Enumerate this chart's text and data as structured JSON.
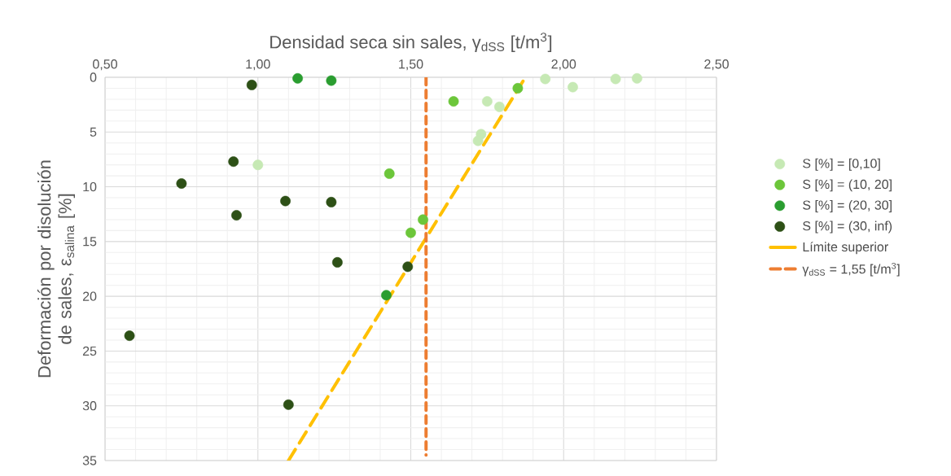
{
  "chart_data": {
    "type": "scatter",
    "xlabel": "Densidad seca sin sales, γ$_{dSS}$ [t/m$^{3}$]",
    "ylabel": "Deformación por disolución de sales, ε$_{salina}$ [%]",
    "xlim": [
      0.5,
      2.5
    ],
    "ylim": [
      35,
      0
    ],
    "xticks": [
      {
        "value": 0.5,
        "label": "0,50"
      },
      {
        "value": 1.0,
        "label": "1,00"
      },
      {
        "value": 1.5,
        "label": "1,50"
      },
      {
        "value": 2.0,
        "label": "2,00"
      },
      {
        "value": 2.5,
        "label": "2,50"
      }
    ],
    "yticks": [
      0,
      5,
      10,
      15,
      20,
      25,
      30,
      35
    ],
    "grid": true,
    "legend": "right",
    "series": [
      {
        "name": "S [%] = [0,10]",
        "color": "#c6e9b4",
        "marker": "circle",
        "x": [
          1.0,
          1.94,
          2.03,
          2.17,
          2.24,
          1.75,
          1.79,
          1.73,
          1.72
        ],
        "values": [
          8.0,
          0.15,
          0.9,
          0.15,
          0.1,
          2.2,
          2.7,
          5.2,
          5.8
        ]
      },
      {
        "name": "S [%] = (10, 20]",
        "color": "#6cc63a",
        "marker": "circle",
        "x": [
          1.64,
          1.43,
          1.54,
          1.5,
          1.85
        ],
        "values": [
          2.2,
          8.8,
          13.0,
          14.2,
          1.0
        ]
      },
      {
        "name": "S [%] = (20, 30]",
        "color": "#2a9d30",
        "marker": "circle",
        "x": [
          1.13,
          1.24,
          1.42
        ],
        "values": [
          0.1,
          0.3,
          19.9
        ]
      },
      {
        "name": "S [%] = (30, inf)",
        "color": "#2d5016",
        "marker": "circle",
        "x": [
          0.98,
          0.92,
          0.75,
          1.09,
          1.24,
          0.93,
          1.26,
          1.49,
          0.58,
          1.1
        ],
        "values": [
          0.7,
          7.7,
          9.7,
          11.3,
          11.4,
          12.6,
          16.9,
          17.3,
          23.6,
          29.9
        ]
      },
      {
        "name": "Límite superior",
        "type": "line",
        "line_style": "dashed",
        "marker": "none",
        "color": "#ffc000",
        "x": [
          1.1,
          1.875
        ],
        "values": [
          35,
          0
        ]
      },
      {
        "name": "γ$_{dSS}$ = 1,55 [t/m$^{3}$]",
        "type": "line",
        "line_style": "dotted",
        "marker": "none",
        "color": "#ed7d31",
        "x": [
          1.55,
          1.55
        ],
        "values": [
          0,
          34.5
        ]
      }
    ]
  }
}
